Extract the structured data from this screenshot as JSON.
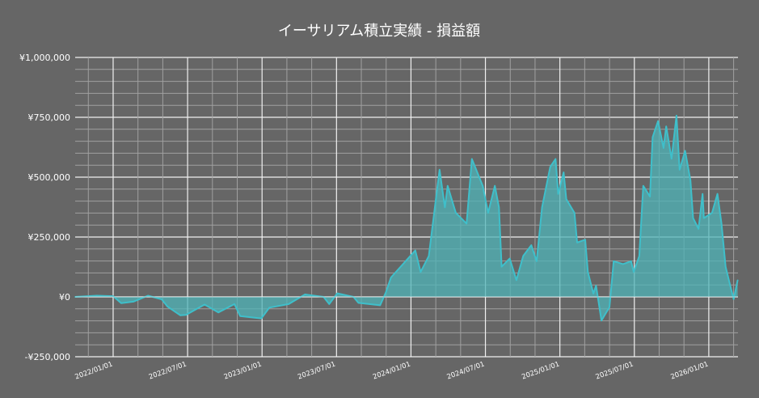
{
  "chart_data": {
    "type": "area",
    "title": "イーサリアム積立実績  -  損益額",
    "xlabel": "",
    "ylabel": "",
    "x_unit": "decimal year",
    "xlim": [
      2021.745,
      2026.196
    ],
    "ylim": [
      -250000,
      1000000
    ],
    "grid": true,
    "y_ticks": [
      {
        "value": 1000000,
        "label": "¥1,000,000"
      },
      {
        "value": 750000,
        "label": "¥750,000"
      },
      {
        "value": 500000,
        "label": "¥500,000"
      },
      {
        "value": 250000,
        "label": "¥250,000"
      },
      {
        "value": 0,
        "label": "¥0"
      },
      {
        "value": -250000,
        "label": "-¥250,000"
      }
    ],
    "x_ticks": [
      {
        "value": 2022.0,
        "label": "2022/01/01"
      },
      {
        "value": 2022.496,
        "label": "2022/07/01"
      },
      {
        "value": 2023.0,
        "label": "2023/01/01"
      },
      {
        "value": 2023.496,
        "label": "2023/07/01"
      },
      {
        "value": 2024.0,
        "label": "2024/01/01"
      },
      {
        "value": 2024.497,
        "label": "2024/07/01"
      },
      {
        "value": 2025.0,
        "label": "2025/01/01"
      },
      {
        "value": 2025.496,
        "label": "2025/07/01"
      },
      {
        "value": 2026.0,
        "label": "2026/01/01"
      }
    ],
    "colors": {
      "line": "#3fbfca",
      "fill": "#4fb4b8",
      "background": "#666666",
      "grid_major": "#f0f0f0",
      "grid_minor": "#a0a0a0"
    },
    "series": [
      {
        "name": "損益額",
        "points": [
          [
            2021.745,
            0
          ],
          [
            2021.89,
            5000
          ],
          [
            2022.0,
            3000
          ],
          [
            2022.054,
            -26000
          ],
          [
            2022.136,
            -20000
          ],
          [
            2022.234,
            5000
          ],
          [
            2022.326,
            -10000
          ],
          [
            2022.364,
            -40000
          ],
          [
            2022.451,
            -77000
          ],
          [
            2022.489,
            -75000
          ],
          [
            2022.614,
            -32000
          ],
          [
            2022.707,
            -65000
          ],
          [
            2022.815,
            -30000
          ],
          [
            2022.853,
            -80000
          ],
          [
            2022.995,
            -90000
          ],
          [
            2023.049,
            -45000
          ],
          [
            2023.179,
            -30000
          ],
          [
            2023.288,
            10000
          ],
          [
            2023.413,
            0
          ],
          [
            2023.451,
            -30000
          ],
          [
            2023.505,
            15000
          ],
          [
            2023.614,
            0
          ],
          [
            2023.647,
            -25000
          ],
          [
            2023.793,
            -35000
          ],
          [
            2023.832,
            20000
          ],
          [
            2023.866,
            81000
          ],
          [
            2024.029,
            194000
          ],
          [
            2024.065,
            104000
          ],
          [
            2024.12,
            171000
          ],
          [
            2024.192,
            531000
          ],
          [
            2024.228,
            374000
          ],
          [
            2024.246,
            464000
          ],
          [
            2024.301,
            351000
          ],
          [
            2024.373,
            306000
          ],
          [
            2024.409,
            576000
          ],
          [
            2024.482,
            464000
          ],
          [
            2024.518,
            351000
          ],
          [
            2024.563,
            464000
          ],
          [
            2024.591,
            374000
          ],
          [
            2024.609,
            126000
          ],
          [
            2024.663,
            160000
          ],
          [
            2024.708,
            70000
          ],
          [
            2024.754,
            171000
          ],
          [
            2024.808,
            216000
          ],
          [
            2024.844,
            149000
          ],
          [
            2024.88,
            374000
          ],
          [
            2024.935,
            543000
          ],
          [
            2024.971,
            576000
          ],
          [
            2024.989,
            430000
          ],
          [
            2025.025,
            520000
          ],
          [
            2025.043,
            408000
          ],
          [
            2025.098,
            351000
          ],
          [
            2025.116,
            227000
          ],
          [
            2025.17,
            239000
          ],
          [
            2025.188,
            104000
          ],
          [
            2025.225,
            14000
          ],
          [
            2025.243,
            47000
          ],
          [
            2025.279,
            -99000
          ],
          [
            2025.333,
            -43000
          ],
          [
            2025.361,
            149000
          ],
          [
            2025.424,
            137000
          ],
          [
            2025.478,
            149000
          ],
          [
            2025.496,
            104000
          ],
          [
            2025.533,
            171000
          ],
          [
            2025.56,
            464000
          ],
          [
            2025.605,
            419000
          ],
          [
            2025.623,
            667000
          ],
          [
            2025.659,
            734000
          ],
          [
            2025.696,
            622000
          ],
          [
            2025.714,
            712000
          ],
          [
            2025.75,
            577000
          ],
          [
            2025.783,
            757000
          ],
          [
            2025.804,
            531000
          ],
          [
            2025.841,
            610000
          ],
          [
            2025.877,
            486000
          ],
          [
            2025.895,
            329000
          ],
          [
            2025.931,
            284000
          ],
          [
            2025.958,
            430000
          ],
          [
            2025.967,
            329000
          ],
          [
            2026.022,
            351000
          ],
          [
            2026.058,
            430000
          ],
          [
            2026.085,
            306000
          ],
          [
            2026.113,
            126000
          ],
          [
            2026.148,
            36000
          ],
          [
            2026.167,
            -9000
          ],
          [
            2026.194,
            70000
          ]
        ]
      }
    ]
  }
}
